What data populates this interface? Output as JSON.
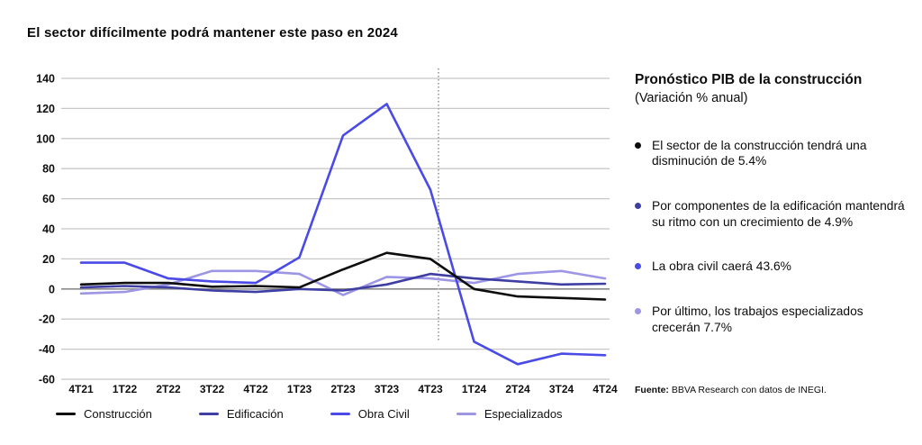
{
  "title": "El sector difícilmente podrá mantener este paso en 2024",
  "chart_data": {
    "type": "line",
    "categories": [
      "4T21",
      "1T22",
      "2T22",
      "3T22",
      "4T22",
      "1T23",
      "2T23",
      "3T23",
      "4T23",
      "1T24",
      "2T24",
      "3T24",
      "4T24"
    ],
    "series": [
      {
        "name": "Construcción",
        "color": "#0d0d0d",
        "values": [
          3,
          4,
          4,
          1.5,
          2,
          1,
          13,
          24,
          20,
          0,
          -5,
          -6,
          -7
        ]
      },
      {
        "name": "Edificación",
        "color": "#3f3fa3",
        "values": [
          1,
          2,
          1,
          -1,
          -2,
          0,
          -1,
          3,
          10,
          7,
          5,
          3,
          3.5
        ]
      },
      {
        "name": "Obra Civil",
        "color": "#4a4ae6",
        "values": [
          17.5,
          17.5,
          7,
          5,
          4,
          21,
          102,
          123,
          66,
          -35,
          -50,
          -43,
          -44
        ]
      },
      {
        "name": "Especializados",
        "color": "#9c96e4",
        "values": [
          -3,
          -2,
          3,
          12,
          12,
          10,
          -4,
          8,
          7,
          4,
          10,
          12,
          7
        ]
      }
    ],
    "title": "El sector difícilmente podrá mantener este paso en 2024",
    "xlabel": "",
    "ylabel": "",
    "ylim": [
      -60,
      140
    ],
    "ytick_step": 20,
    "grid": true,
    "zero_line": true,
    "forecast_divider_after_index": 8,
    "legend_position": "bottom",
    "colors": {
      "gridline": "#c8c8c8",
      "zero_line": "#8c8c8c",
      "divider": "#ababab",
      "tick_text": "#0e0e0e"
    }
  },
  "panel": {
    "heading": "Pronóstico PIB de la construcción",
    "subheading": "(Variación % anual)",
    "bullets": [
      {
        "color": "#0d0d0d",
        "text": "El sector de la construcción tendrá una disminución de 5.4%"
      },
      {
        "color": "#3f3fa3",
        "text": "Por componentes de la edificación mantendrá su ritmo con un crecimiento de 4.9%"
      },
      {
        "color": "#4a4ae6",
        "text": "La obra civil caerá 43.6%"
      },
      {
        "color": "#9c96e4",
        "text": "Por último, los trabajos especializados crecerán 7.7%"
      }
    ],
    "source_label": "Fuente:",
    "source_text": " BBVA Research con datos de INEGI."
  }
}
